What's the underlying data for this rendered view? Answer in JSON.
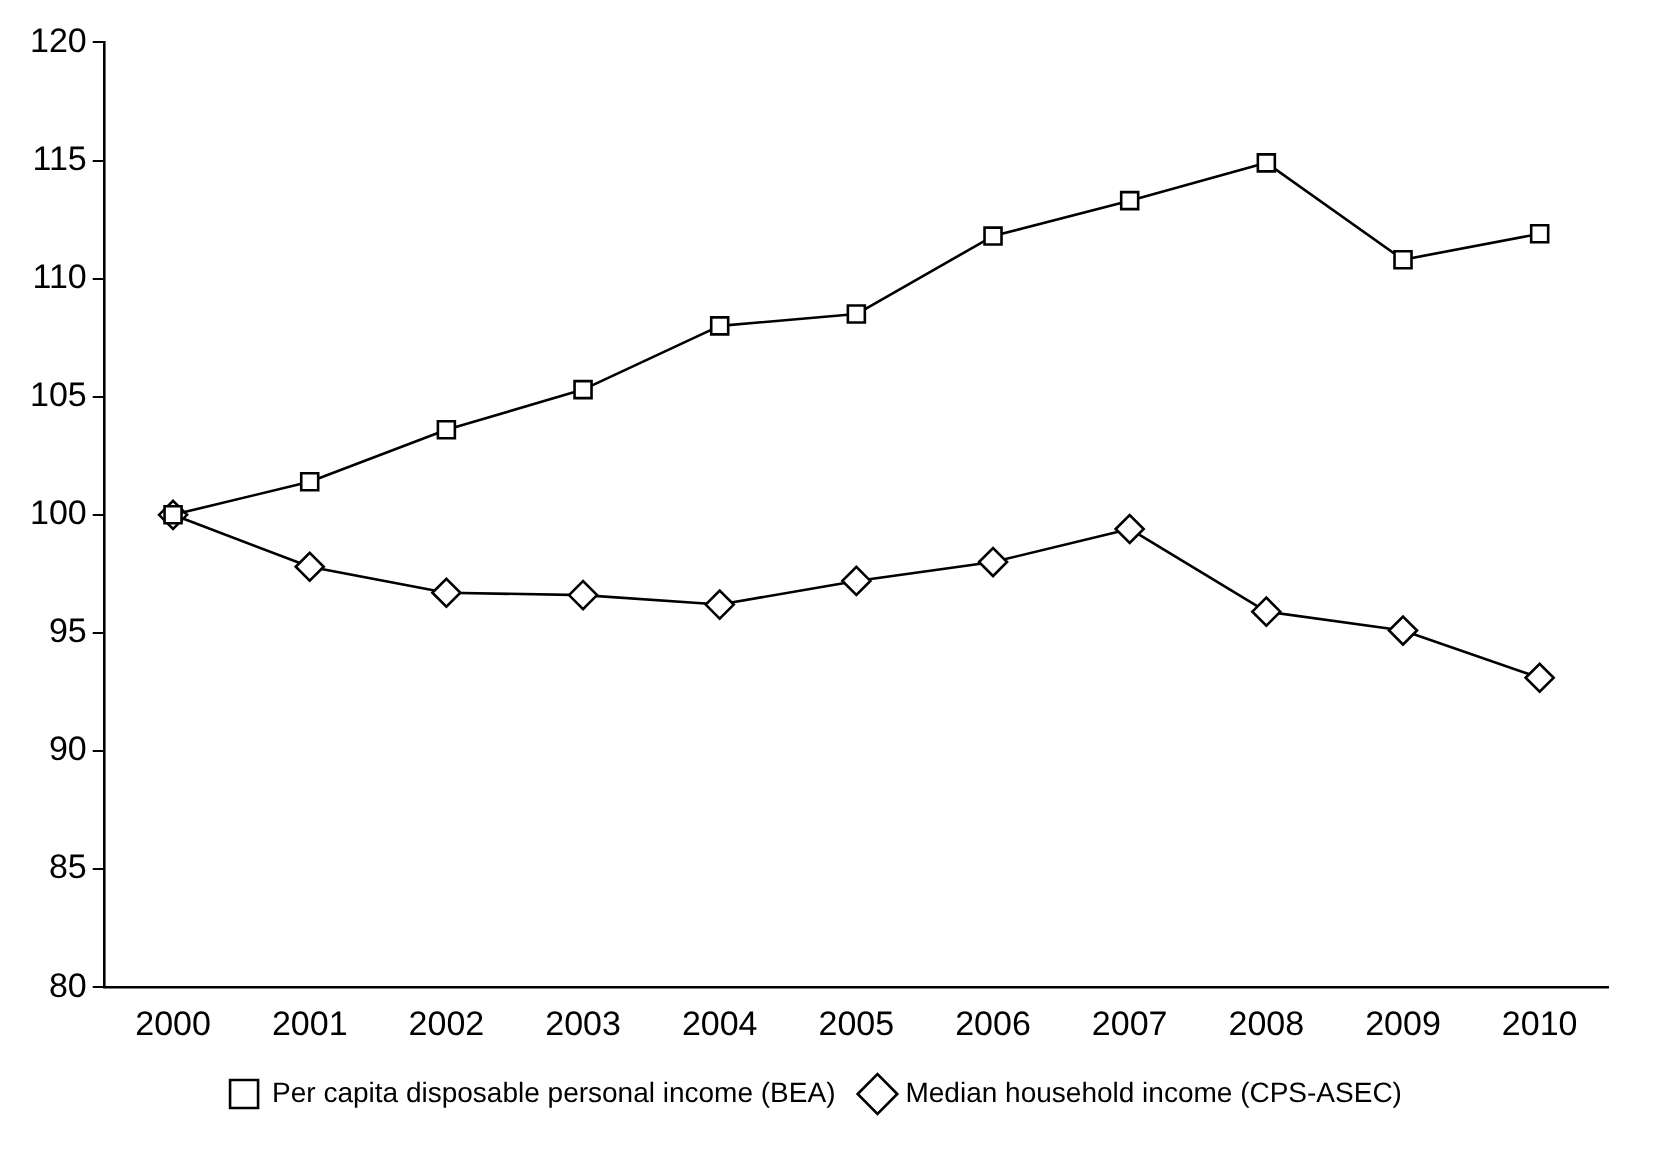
{
  "chart_data": {
    "type": "line",
    "categories": [
      "2000",
      "2001",
      "2002",
      "2003",
      "2004",
      "2005",
      "2006",
      "2007",
      "2008",
      "2009",
      "2010"
    ],
    "series": [
      {
        "name": "Per capita disposable personal income (BEA)",
        "color": "#000000",
        "marker": "square",
        "values": [
          100,
          101.4,
          103.6,
          105.3,
          108.0,
          108.5,
          111.8,
          113.3,
          114.9,
          110.8,
          111.9
        ]
      },
      {
        "name": "Median household income (CPS-ASEC)",
        "color": "#000000",
        "marker": "diamond",
        "values": [
          100,
          97.8,
          96.7,
          96.6,
          96.2,
          97.2,
          98.0,
          99.4,
          95.9,
          95.1,
          93.1
        ]
      }
    ],
    "ylim": [
      80,
      120
    ],
    "yticks": [
      80,
      85,
      90,
      95,
      100,
      105,
      110,
      115,
      120
    ],
    "grid": false,
    "legend": "bottom",
    "line_style": "solid"
  }
}
